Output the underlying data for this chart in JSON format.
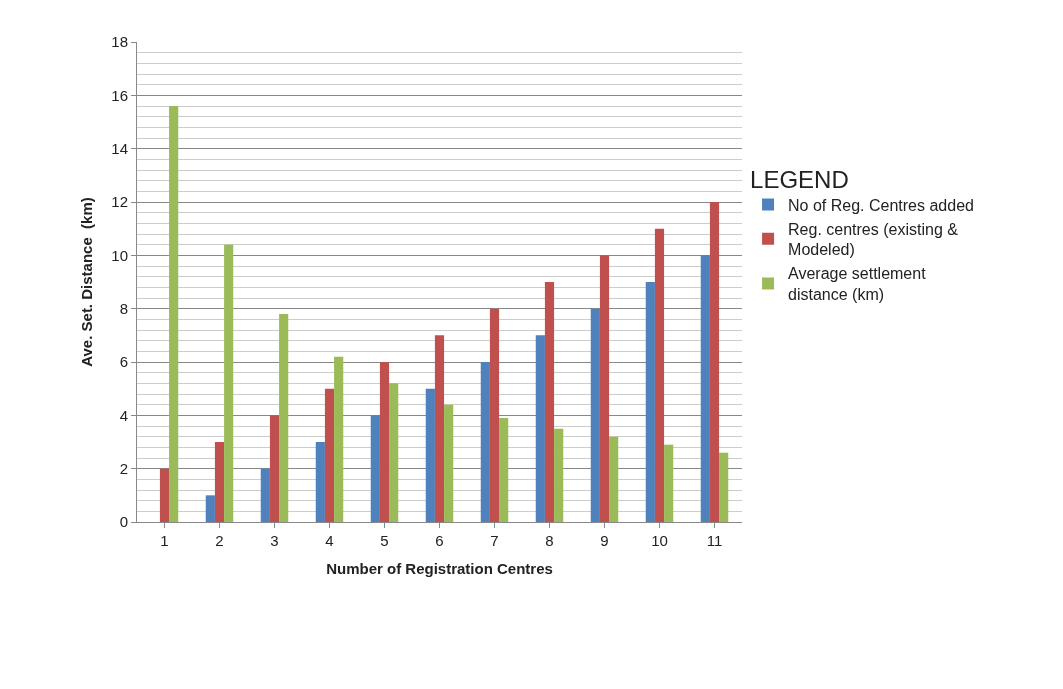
{
  "chart_data": {
    "type": "bar",
    "xlabel": "Number of Registration Centres",
    "ylabel": "Ave. Set. Distance  (km)",
    "legend_title": "LEGEND",
    "categories": [
      "1",
      "2",
      "3",
      "4",
      "5",
      "6",
      "7",
      "8",
      "9",
      "10",
      "11"
    ],
    "series": [
      {
        "name": "No of Reg. Centres added",
        "color": "#4f81bd",
        "values": [
          0,
          1,
          2,
          3,
          4,
          5,
          6,
          7,
          8,
          9,
          10
        ]
      },
      {
        "name": "Reg. centres (existing & Modeled)",
        "color": "#c0504d",
        "values": [
          2,
          3,
          4,
          5,
          6,
          7,
          8,
          9,
          10,
          11,
          12
        ]
      },
      {
        "name": "Average settlement distance (km)",
        "color": "#9bbb59",
        "values": [
          15.6,
          10.4,
          7.8,
          6.2,
          5.2,
          4.4,
          3.9,
          3.5,
          3.2,
          2.9,
          2.6
        ]
      }
    ],
    "ylim": [
      0,
      18
    ],
    "yticks": [
      0,
      2,
      4,
      6,
      8,
      10,
      12,
      14,
      16,
      18
    ],
    "grid": "y",
    "legend": "right"
  }
}
